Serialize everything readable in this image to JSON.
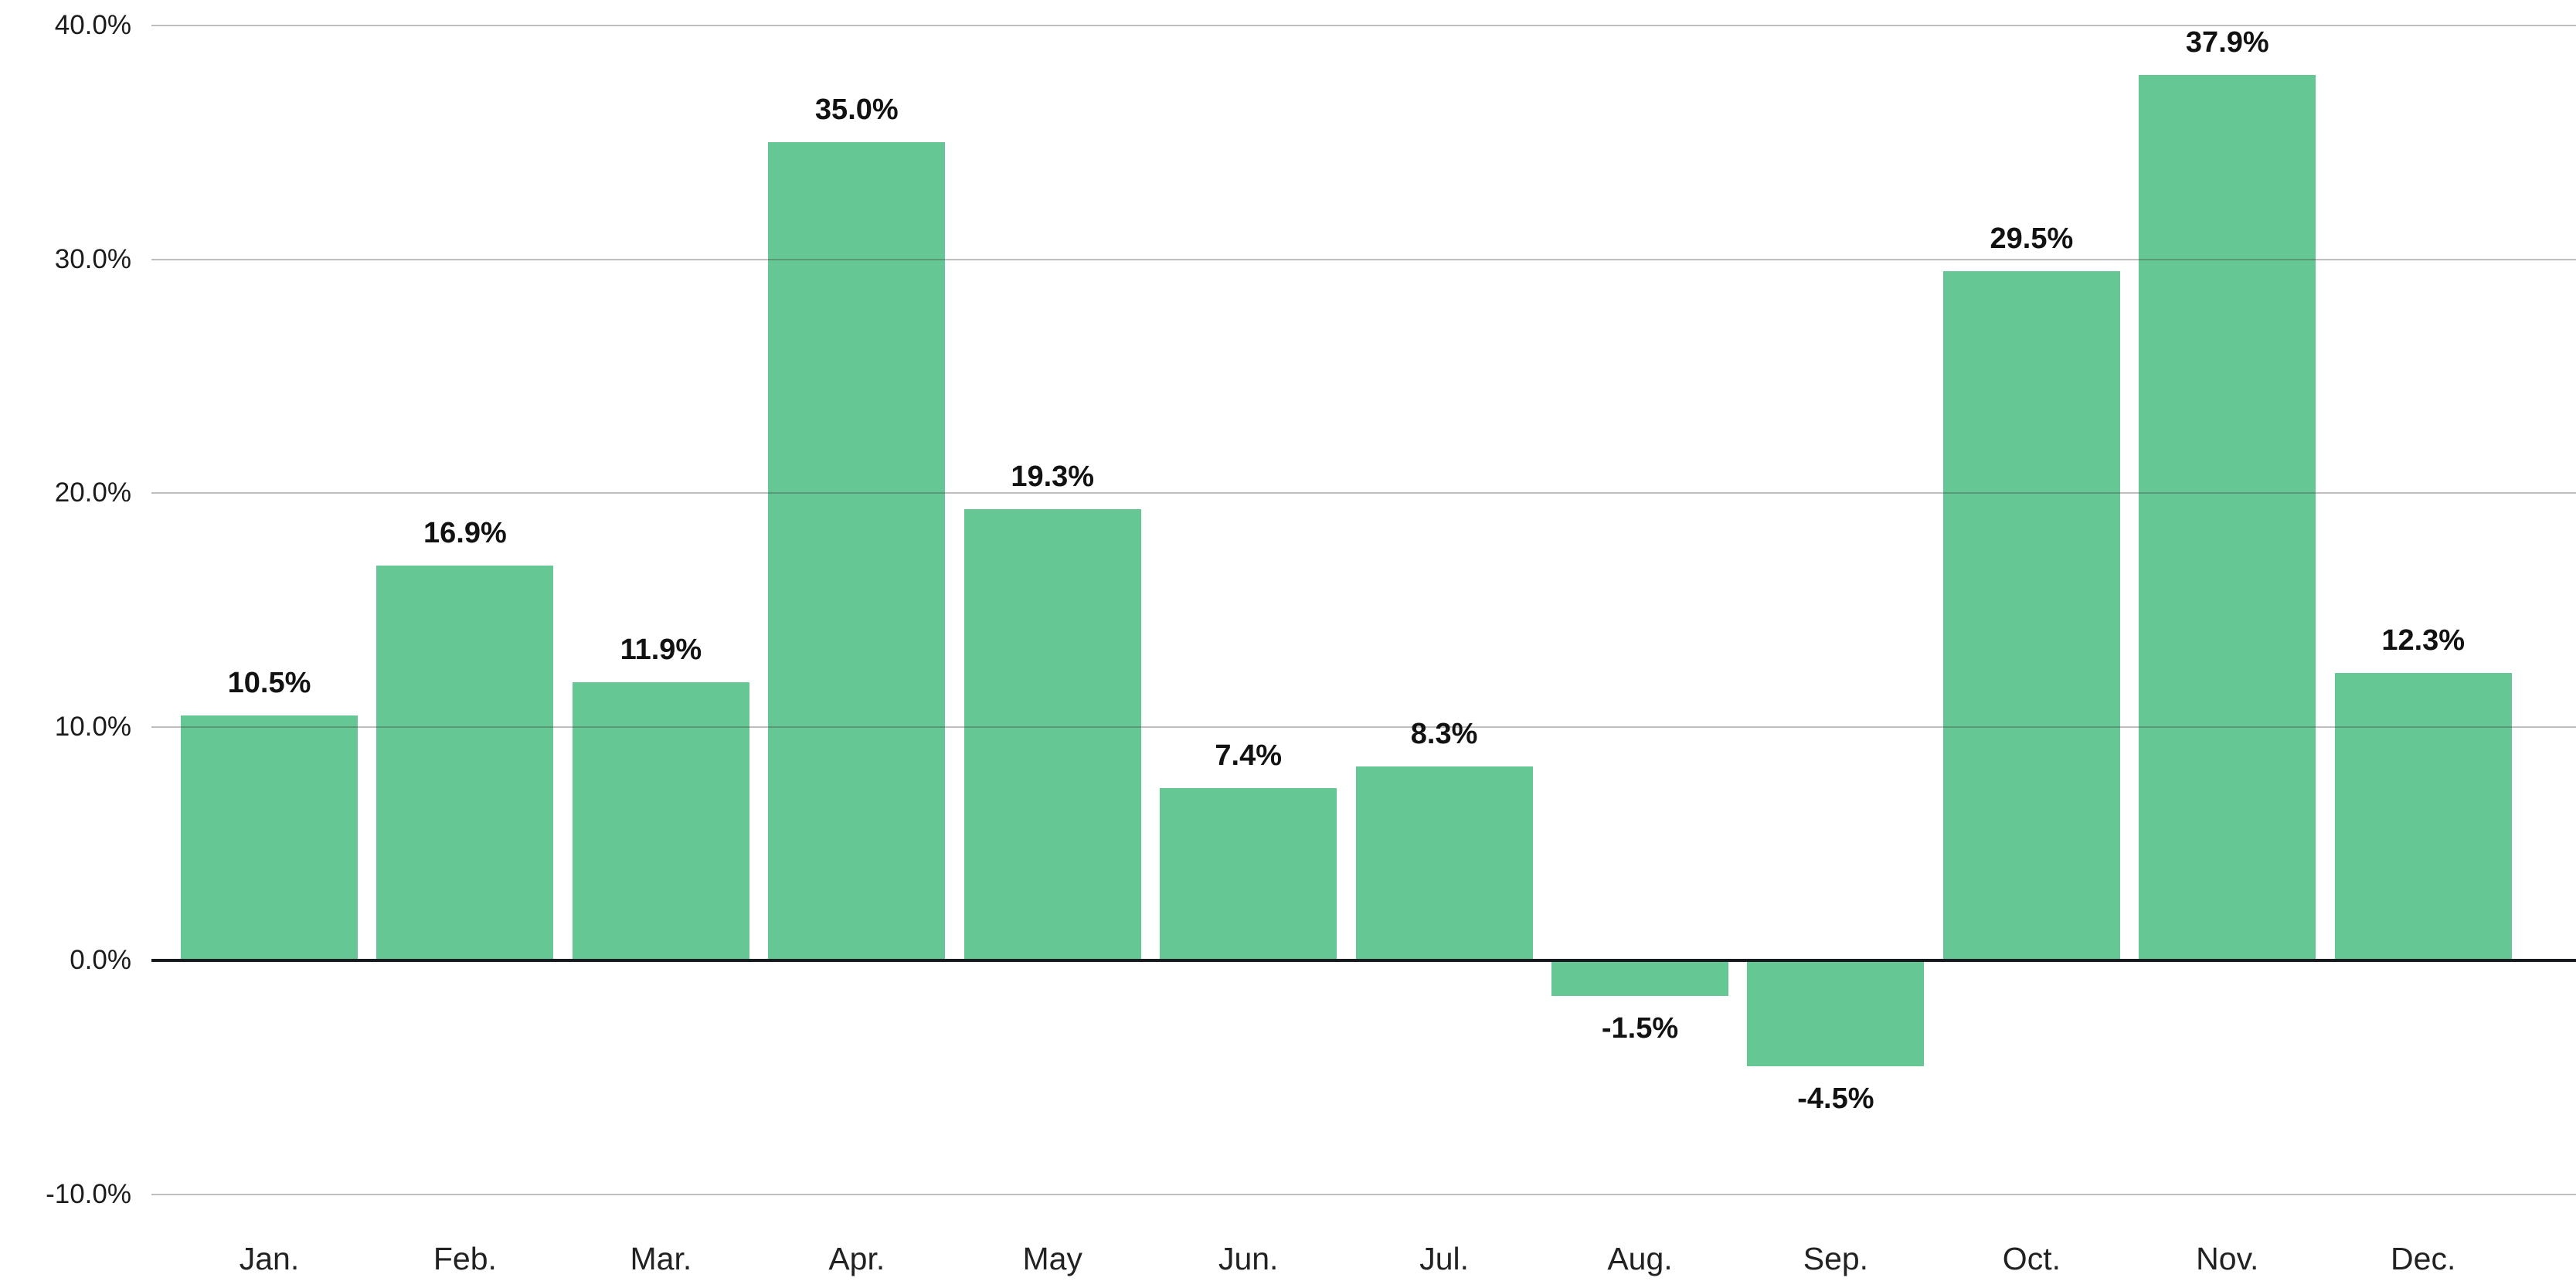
{
  "chart_data": {
    "type": "bar",
    "title": "",
    "xlabel": "",
    "ylabel": "",
    "categories": [
      "Jan.",
      "Feb.",
      "Mar.",
      "Apr.",
      "May",
      "Jun.",
      "Jul.",
      "Aug.",
      "Sep.",
      "Oct.",
      "Nov.",
      "Dec."
    ],
    "values": [
      10.5,
      16.9,
      11.9,
      35.0,
      19.3,
      7.4,
      8.3,
      -1.5,
      -4.5,
      29.5,
      37.9,
      12.3
    ],
    "value_labels": [
      "10.5%",
      "16.9%",
      "11.9%",
      "35.0%",
      "19.3%",
      "7.4%",
      "8.3%",
      "-1.5%",
      "-4.5%",
      "29.5%",
      "37.9%",
      "12.3%"
    ],
    "yticks": [
      {
        "value": 40,
        "label": "40.0%"
      },
      {
        "value": 30,
        "label": "30.0%"
      },
      {
        "value": 20,
        "label": "20.0%"
      },
      {
        "value": 10,
        "label": "10.0%"
      },
      {
        "value": 0,
        "label": "0.0%"
      },
      {
        "value": -10,
        "label": "-10.0%"
      }
    ],
    "ylim": [
      -10,
      40
    ],
    "grid": "horizontal",
    "legend_position": "none",
    "colors": {
      "bar": "#64C794",
      "gridline": "rgba(70,70,70,0.35)",
      "zero_line": "#161A1F",
      "tick_label_text": "#1B1B1B",
      "month_label_text": "#222222",
      "value_label_text": "#121212",
      "background": "#FFFFFF"
    }
  }
}
